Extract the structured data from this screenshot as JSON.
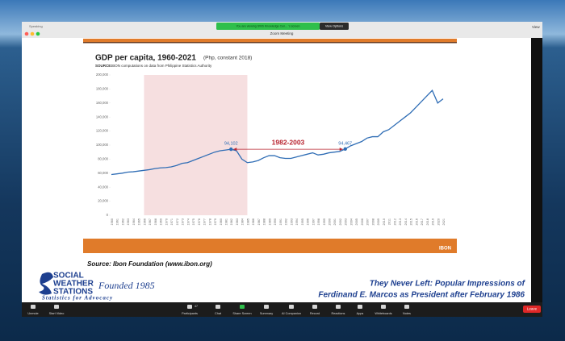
{
  "zoom": {
    "banner": "You are viewing SWS Knowledge Cen... 's screen",
    "view_options": "View Options",
    "window_title": "Zoom Meeting",
    "view": "View",
    "speaking": "Speaking",
    "toolbar": [
      "Unmute",
      "Start Video",
      "Participants",
      "Chat",
      "Share Screen",
      "Summary",
      "AI Companion",
      "Record",
      "Reactions",
      "Apps",
      "Whiteboards",
      "Notes"
    ],
    "participant_count": "47",
    "leave": "Leave"
  },
  "slide": {
    "logo": "IBON",
    "chart_data": {
      "type": "line",
      "title": "GDP per capita, 1960-2021",
      "subtitle": "(Php, constant 2018)",
      "source_label": "SOURCE:",
      "source": "IBON computations on data from Philippine Statistics Authority",
      "categories": [
        "1960",
        "1961",
        "1962",
        "1963",
        "1964",
        "1965",
        "1966",
        "1967",
        "1968",
        "1969",
        "1970",
        "1971",
        "1972",
        "1973",
        "1974",
        "1975",
        "1976",
        "1977",
        "1978",
        "1979",
        "1980",
        "1981",
        "1982",
        "1983",
        "1984",
        "1985",
        "1986",
        "1987",
        "1988",
        "1989",
        "1990",
        "1991",
        "1992",
        "1993",
        "1994",
        "1995",
        "1996",
        "1997",
        "1998",
        "1999",
        "2000",
        "2001",
        "2002",
        "2003",
        "2004",
        "2005",
        "2006",
        "2007",
        "2008",
        "2009",
        "2010",
        "2011",
        "2012",
        "2013",
        "2014",
        "2015",
        "2016",
        "2017",
        "2018",
        "2019",
        "2020",
        "2021"
      ],
      "values": [
        58000,
        59000,
        60000,
        61500,
        62000,
        63000,
        64000,
        65000,
        66500,
        67500,
        68000,
        69000,
        71000,
        74000,
        75000,
        78000,
        81000,
        84000,
        87000,
        90000,
        92000,
        93000,
        94102,
        92000,
        80000,
        75000,
        76000,
        78000,
        82000,
        85000,
        85000,
        82000,
        81000,
        81000,
        83000,
        85000,
        87000,
        89000,
        86000,
        87000,
        89000,
        90000,
        91000,
        94467,
        99000,
        102000,
        105000,
        110000,
        112000,
        112000,
        119000,
        122000,
        128000,
        134000,
        140000,
        146000,
        154000,
        162000,
        170000,
        178000,
        160000,
        166000
      ],
      "value_labels": [
        null,
        null,
        null,
        null,
        null,
        null,
        null,
        null,
        null,
        null,
        null,
        null,
        null,
        null,
        null,
        null,
        null,
        null,
        null,
        null,
        null,
        null,
        "94,102",
        null,
        null,
        null,
        null,
        null,
        null,
        null,
        null,
        null,
        null,
        null,
        null,
        null,
        null,
        null,
        null,
        null,
        null,
        null,
        null,
        "94,467",
        null,
        null,
        null,
        null,
        null,
        null,
        null,
        null,
        null,
        null,
        null,
        null,
        null,
        null,
        null,
        null,
        null,
        null
      ],
      "color": "#2f6db5",
      "ylim": [
        0,
        200000
      ],
      "yticks": [
        0,
        {
          "value": 20000,
          "label": "20,000"
        },
        {
          "value": 40000,
          "label": "40,000"
        },
        {
          "value": 60000,
          "label": "60,000"
        },
        {
          "value": 80000,
          "label": "80,000"
        },
        {
          "value": 100000,
          "label": "100,000"
        },
        {
          "value": 120000,
          "label": "120,000"
        },
        {
          "value": 140000,
          "label": "140,000"
        },
        {
          "value": 160000,
          "label": "160,000"
        },
        {
          "value": 180000,
          "label": "180,000"
        },
        {
          "value": 200000,
          "label": "200,000"
        }
      ],
      "highlight": {
        "from": "1966",
        "to": "1985",
        "color": "#f6dfe0"
      },
      "annotation": {
        "text": "1982-2003",
        "from": "1982",
        "to": "2003",
        "color": "#b8232f"
      }
    }
  },
  "caption": "Source: Ibon Foundation (www.ibon.org)",
  "sws": {
    "name_1": "SOCIAL",
    "name_2": "WEATHER",
    "name_3": "STATIONS",
    "founded": "Founded 1985",
    "tagline": "Statistics for Advocacy"
  },
  "presentation_title": [
    "They Never Left: Popular Impressions of",
    "Ferdinand E. Marcos as President after February 1986"
  ]
}
